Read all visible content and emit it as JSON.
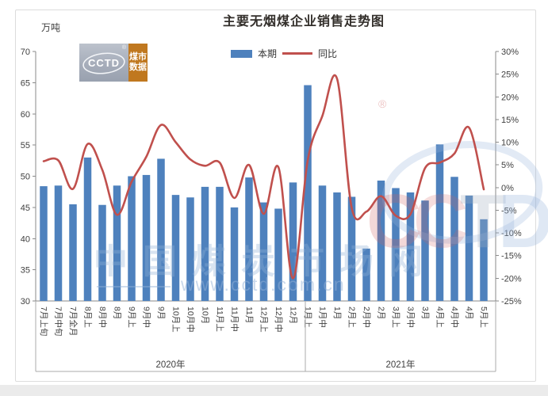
{
  "header": {
    "unit_label": "万吨",
    "title": "主要无烟煤企业销售走势图"
  },
  "logo": {
    "brand": "CCTD",
    "registered_mark": "®",
    "tagline_line1": "煤市",
    "tagline_line2": "数据",
    "gray": "#a6adba",
    "orange": "#c0781f"
  },
  "legend": {
    "bar_label": "本期",
    "line_label": "同比"
  },
  "watermark": {
    "big_text": "中国煤炭市场网",
    "url": "www.cctd.com.cn",
    "letter_c1": "C",
    "letter_c2": "C",
    "letter_t": "T",
    "letter_d": "D",
    "registered": "®"
  },
  "chart_data": {
    "type": "bar",
    "title": "主要无烟煤企业销售走势图",
    "grid": false,
    "legend_position": "top",
    "categories": [
      "7月上旬",
      "7月中旬",
      "7月全月",
      "8月上",
      "8月中",
      "8月",
      "9月上",
      "9月中",
      "9月",
      "10月上",
      "10月中",
      "10月",
      "11月上",
      "11月中",
      "11月",
      "12月上",
      "12月中",
      "12月",
      "1月上",
      "1月中",
      "1月",
      "2月上",
      "2月中",
      "2月",
      "3月上",
      "3月中",
      "3月",
      "4月上",
      "4月中",
      "4月",
      "5月上"
    ],
    "year_groups": [
      {
        "label": "2020年",
        "count": 18
      },
      {
        "label": "2021年",
        "count": 13
      }
    ],
    "series": [
      {
        "name": "本期",
        "type": "bar",
        "axis": "left",
        "unit": "万吨",
        "color": "#4e81bd",
        "values": [
          48.4,
          48.5,
          45.5,
          53,
          45.4,
          48.5,
          50,
          50.2,
          52.8,
          47,
          46.6,
          48.3,
          48.3,
          45,
          49.8,
          45.8,
          44.8,
          49,
          64.6,
          48.5,
          47.4,
          46.7,
          38.4,
          49.3,
          48.1,
          47.4,
          46.1,
          55.1,
          49.9,
          46.9,
          43.1
        ]
      },
      {
        "name": "同比",
        "type": "line",
        "axis": "right",
        "unit": "%",
        "color": "#c0504d",
        "values": [
          5.8,
          6,
          -0.3,
          9.6,
          3.9,
          -6,
          1.3,
          6.8,
          13.8,
          10,
          6.2,
          4.8,
          5.5,
          -2.3,
          5,
          -5.8,
          4.5,
          -20,
          6,
          15.8,
          24,
          -4.5,
          -5.3,
          -1.9,
          -6.2,
          -5.9,
          4.3,
          5.5,
          7.5,
          13.2,
          -0.4
        ]
      }
    ],
    "left_axis": {
      "label": "万吨",
      "min": 30,
      "max": 70,
      "step": 5,
      "ticks": [
        70,
        65,
        60,
        55,
        50,
        45,
        40,
        35,
        30
      ]
    },
    "right_axis": {
      "min": -25,
      "max": 30,
      "step": 5,
      "ticks": [
        "30%",
        "25%",
        "20%",
        "15%",
        "10%",
        "5%",
        "0%",
        "-5%",
        "-10%",
        "-15%",
        "-20%",
        "-25%"
      ]
    }
  }
}
